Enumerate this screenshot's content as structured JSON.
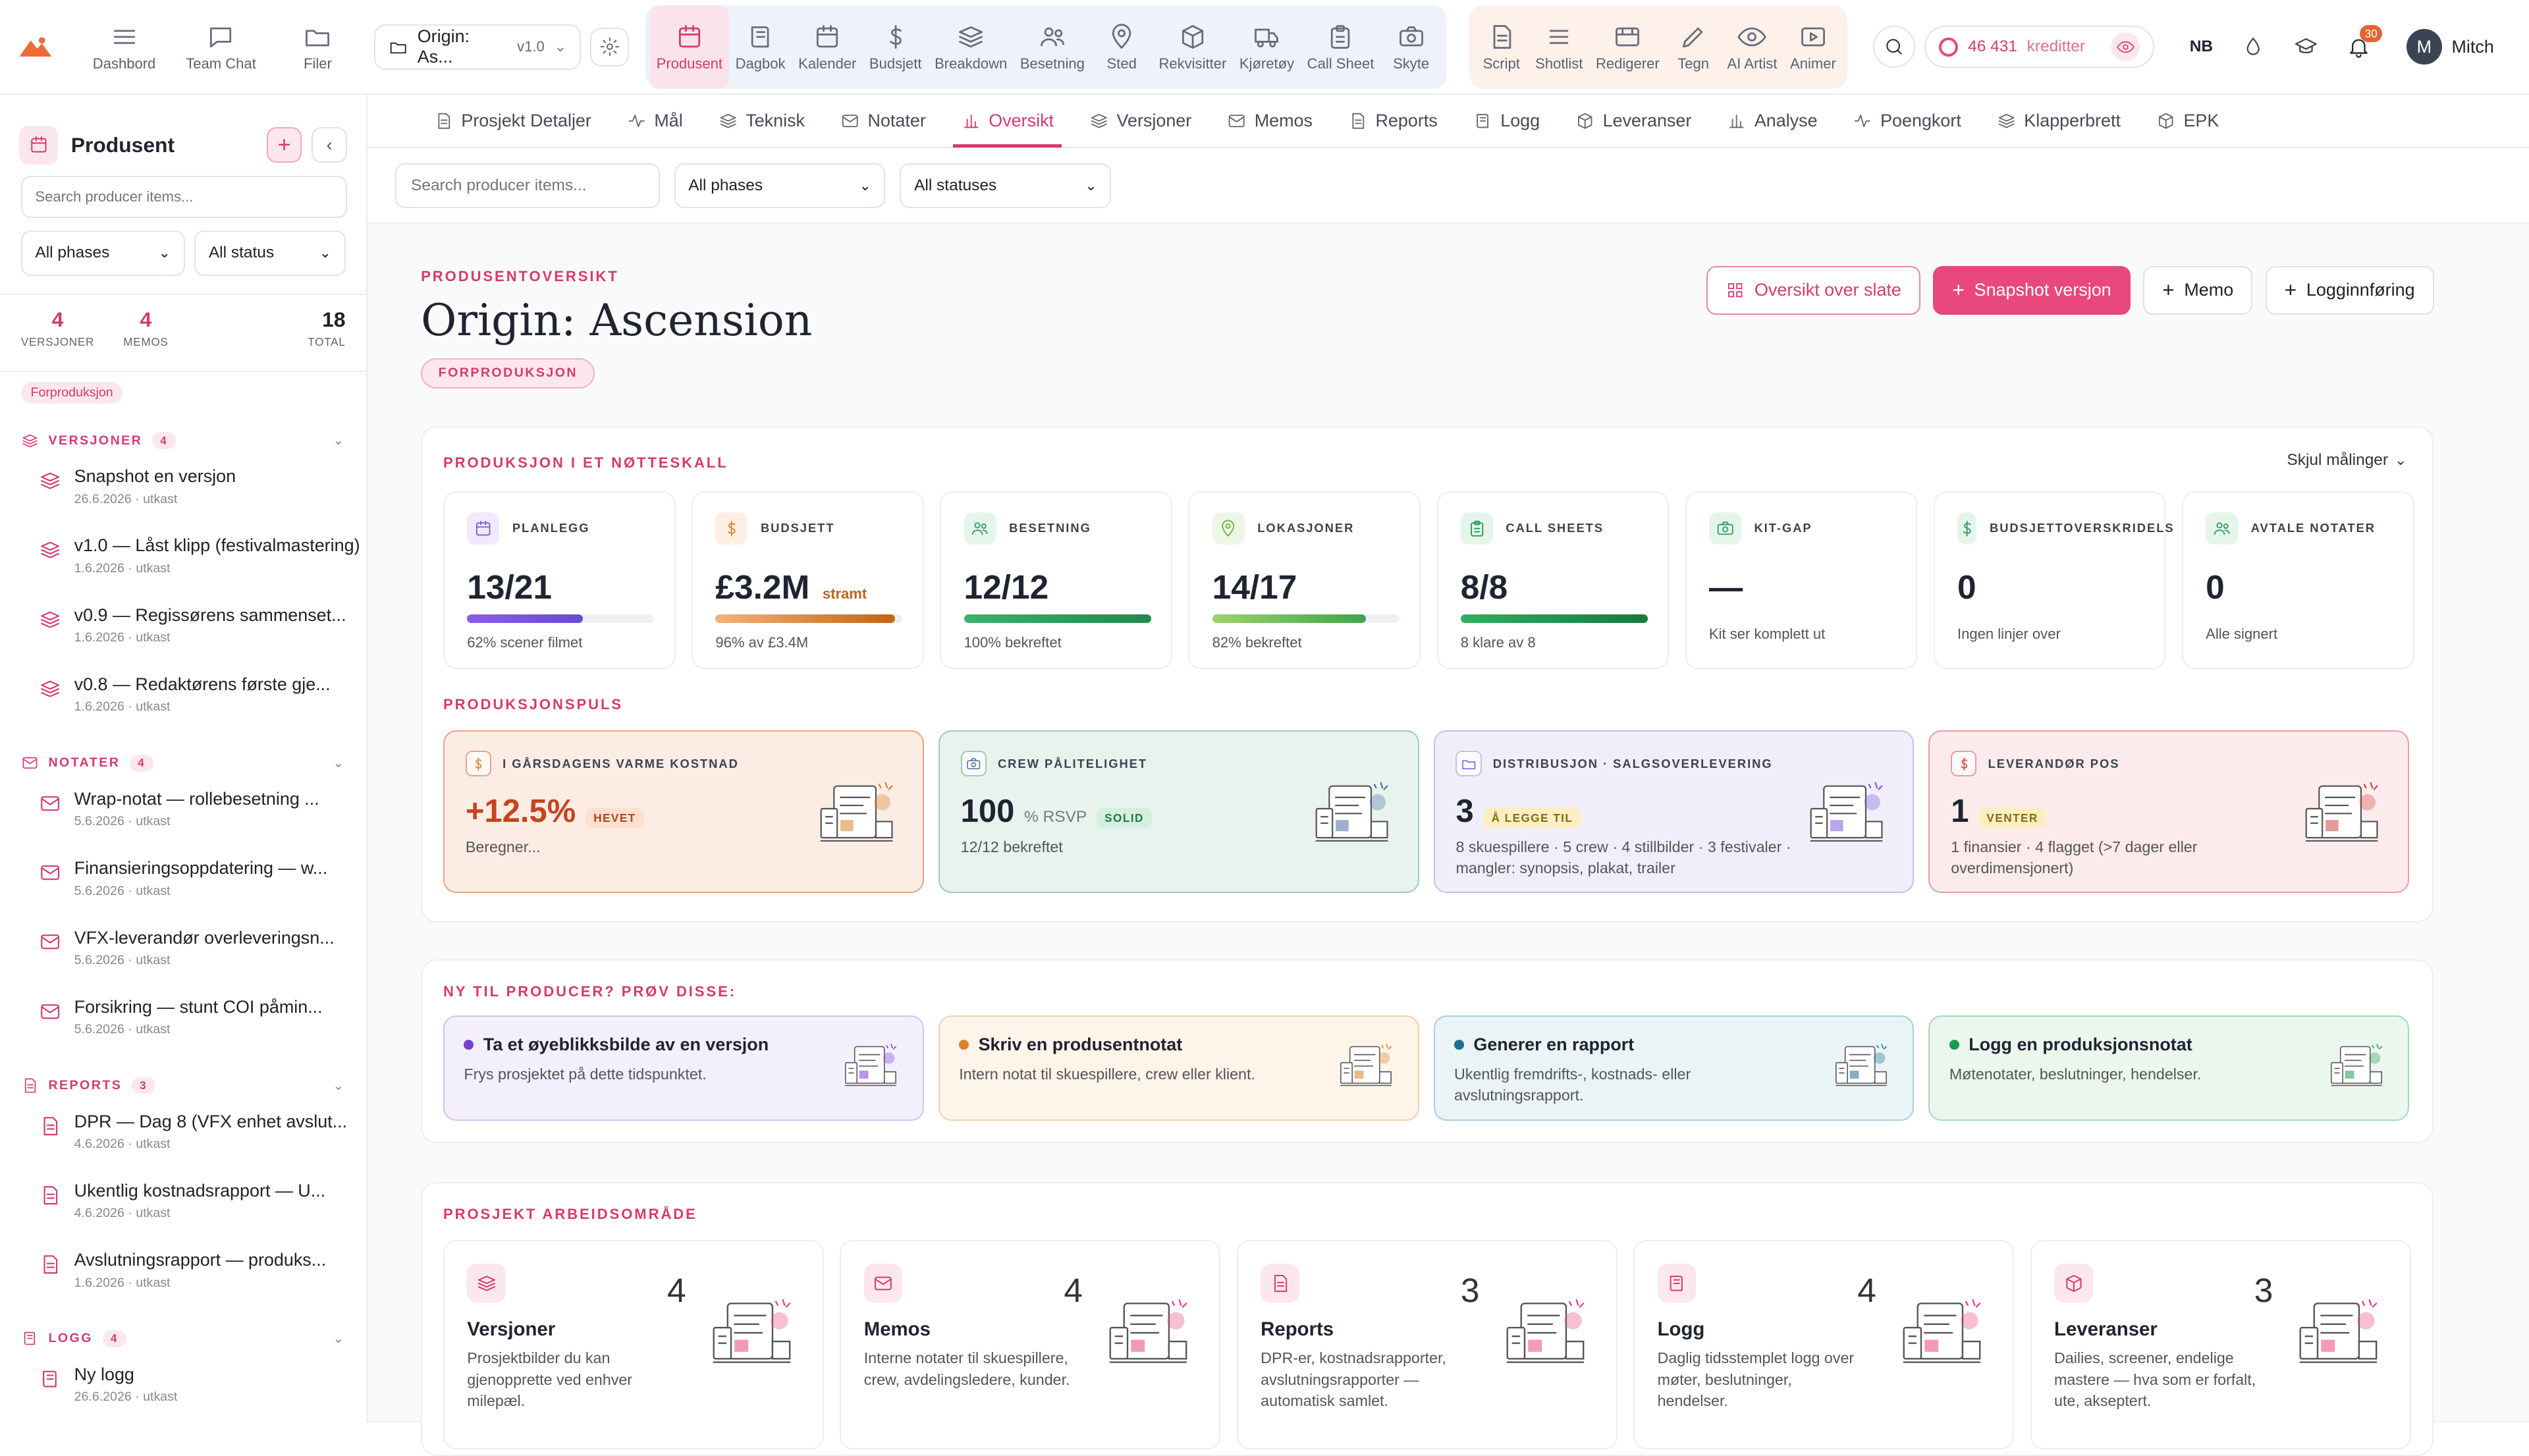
{
  "topbar": {
    "left_items": [
      {
        "label": "Dashbord",
        "icon": "menu-icon"
      },
      {
        "label": "Team Chat",
        "icon": "chat-icon"
      },
      {
        "label": "Filer",
        "icon": "folder-icon"
      }
    ],
    "project": {
      "name": "Origin: As...",
      "version": "v1.0"
    },
    "group_blue": [
      {
        "label": "Produsent",
        "icon": "calendar-icon",
        "active": true
      },
      {
        "label": "Dagbok",
        "icon": "book-icon"
      },
      {
        "label": "Kalender",
        "icon": "calendar-icon"
      },
      {
        "label": "Budsjett",
        "icon": "dollar-icon"
      },
      {
        "label": "Breakdown",
        "icon": "layers-icon"
      },
      {
        "label": "Besetning",
        "icon": "users-icon"
      },
      {
        "label": "Sted",
        "icon": "pin-icon"
      },
      {
        "label": "Rekvisitter",
        "icon": "box-icon"
      },
      {
        "label": "Kjøretøy",
        "icon": "truck-icon"
      },
      {
        "label": "Call Sheet",
        "icon": "clipboard-icon"
      },
      {
        "label": "Skyte",
        "icon": "camera-icon"
      }
    ],
    "group_peach": [
      {
        "label": "Script",
        "icon": "file-icon"
      },
      {
        "label": "Shotlist",
        "icon": "list-icon"
      },
      {
        "label": "Redigerer",
        "icon": "film-icon"
      },
      {
        "label": "Tegn",
        "icon": "pen-icon"
      },
      {
        "label": "AI Artist",
        "icon": "eye-icon"
      },
      {
        "label": "Animer",
        "icon": "play-icon"
      }
    ],
    "credits": {
      "value": "46 431",
      "label": "kreditter"
    },
    "lang": "NB",
    "notif_count": "30",
    "user": {
      "initial": "M",
      "name": "Mitch"
    }
  },
  "sidebar": {
    "title": "Produsent",
    "search_placeholder": "Search producer items...",
    "phase_filter": "All phases",
    "status_filter": "All status",
    "stats": {
      "versions": {
        "n": "4",
        "label": "VERSJONER"
      },
      "memos": {
        "n": "4",
        "label": "MEMOS"
      },
      "total": {
        "n": "18",
        "label": "TOTAL"
      }
    },
    "phase": "Forproduksjon",
    "sections": [
      {
        "title": "VERSJONER",
        "count": "4",
        "items": [
          {
            "title": "Snapshot en versjon",
            "meta": "26.6.2026 · utkast"
          },
          {
            "title": "v1.0 — Låst klipp (festivalmastering)",
            "meta": "1.6.2026 · utkast"
          },
          {
            "title": "v0.9 — Regissørens sammenset...",
            "meta": "1.6.2026 · utkast"
          },
          {
            "title": "v0.8 — Redaktørens første gje...",
            "meta": "1.6.2026 · utkast"
          }
        ]
      },
      {
        "title": "NOTATER",
        "count": "4",
        "items": [
          {
            "title": "Wrap-notat — rollebesetning ...",
            "meta": "5.6.2026 · utkast"
          },
          {
            "title": "Finansieringsoppdatering — w...",
            "meta": "5.6.2026 · utkast"
          },
          {
            "title": "VFX-leverandør overleveringsn...",
            "meta": "5.6.2026 · utkast"
          },
          {
            "title": "Forsikring — stunt COI påmin...",
            "meta": "5.6.2026 · utkast"
          }
        ]
      },
      {
        "title": "REPORTS",
        "count": "3",
        "items": [
          {
            "title": "DPR — Dag 8 (VFX enhet avslut...",
            "meta": "4.6.2026 · utkast"
          },
          {
            "title": "Ukentlig kostnadsrapport — U...",
            "meta": "4.6.2026 · utkast"
          },
          {
            "title": "Avslutningsrapport — produks...",
            "meta": "1.6.2026 · utkast"
          }
        ]
      },
      {
        "title": "LOGG",
        "count": "4",
        "items": [
          {
            "title": "Ny logg",
            "meta": "26.6.2026 · utkast"
          }
        ]
      }
    ]
  },
  "tabs": [
    {
      "label": "Prosjekt Detaljer",
      "icon": "file-icon"
    },
    {
      "label": "Mål",
      "icon": "pulse-icon"
    },
    {
      "label": "Teknisk",
      "icon": "layers-icon"
    },
    {
      "label": "Notater",
      "icon": "mail-icon"
    },
    {
      "label": "Oversikt",
      "icon": "bar-chart-icon",
      "active": true
    },
    {
      "label": "Versjoner",
      "icon": "layers-icon"
    },
    {
      "label": "Memos",
      "icon": "mail-icon"
    },
    {
      "label": "Reports",
      "icon": "file-icon"
    },
    {
      "label": "Logg",
      "icon": "book-icon"
    },
    {
      "label": "Leveranser",
      "icon": "box-icon"
    },
    {
      "label": "Analyse",
      "icon": "bar-chart-icon"
    },
    {
      "label": "Poengkort",
      "icon": "pulse-icon"
    },
    {
      "label": "Klapperbrett",
      "icon": "layers-icon"
    },
    {
      "label": "EPK",
      "icon": "box-icon"
    }
  ],
  "filters": {
    "search_placeholder": "Search producer items...",
    "phase": "All phases",
    "status": "All statuses"
  },
  "header": {
    "overline": "PRODUSENTOVERSIKT",
    "title": "Origin: Ascension",
    "phase": "FORPRODUKSJON",
    "actions": {
      "slate": "Oversikt over slate",
      "snapshot": "Snapshot versjon",
      "memo": "Memo",
      "log": "Logginnføring"
    }
  },
  "nutshell": {
    "title": "PRODUKSJON I ET NØTTESKALL",
    "hide": "Skjul målinger",
    "metrics": [
      {
        "label": "PLANLEGG",
        "value": "13/21",
        "tag": "",
        "sub": "62% scener filmet",
        "progress": 0.62,
        "icon": "calendar-icon",
        "color": "#7b5cd6",
        "bg": "#efeafc"
      },
      {
        "label": "BUDSJETT",
        "value": "£3.2M",
        "tag": "stramt",
        "sub": "96% av £3.4M",
        "progress": 0.96,
        "icon": "dollar-icon",
        "color": "#d9822b",
        "bg": "#fdf0e3"
      },
      {
        "label": "BESETNING",
        "value": "12/12",
        "tag": "",
        "sub": "100% bekreftet",
        "progress": 1.0,
        "icon": "users-icon",
        "color": "#2f9e5b",
        "bg": "#e6f5ec"
      },
      {
        "label": "LOKASJONER",
        "value": "14/17",
        "tag": "",
        "sub": "82% bekreftet",
        "progress": 0.82,
        "icon": "pin-icon",
        "color": "#6cb33f",
        "bg": "#eef7e6"
      },
      {
        "label": "CALL SHEETS",
        "value": "8/8",
        "tag": "",
        "sub": "8 klare av 8",
        "progress": 1.0,
        "icon": "clipboard-icon",
        "color": "#1f9a52",
        "bg": "#e6f5ec"
      },
      {
        "label": "KIT-GAP",
        "value": "—",
        "tag": "",
        "sub": "Kit ser komplett ut",
        "progress": null,
        "icon": "camera-icon",
        "color": "#2f9e5b",
        "bg": "#e6f5ec"
      },
      {
        "label": "BUDSJETTOVERSKRIDELS",
        "value": "0",
        "tag": "",
        "sub": "Ingen linjer over",
        "progress": null,
        "icon": "dollar-icon",
        "color": "#2f9e5b",
        "bg": "#e6f5ec"
      },
      {
        "label": "AVTALE NOTATER",
        "value": "0",
        "tag": "",
        "sub": "Alle signert",
        "progress": null,
        "icon": "users-icon",
        "color": "#2f9e5b",
        "bg": "#e6f5ec"
      }
    ],
    "pulse_title": "PRODUKSJONSPULS",
    "pulses": [
      {
        "label": "I GÅRSDAGENS VARME KOSTNAD",
        "value": "+12.5%",
        "unit": "",
        "chip": "HEVET",
        "sub": "Beregner...",
        "icon": "dollar-icon",
        "bg": "#fbece4",
        "border": "#e9a584",
        "valcolor": "#c4451f",
        "chipbg": "#fde0cf",
        "chipcolor": "#b4451d",
        "iconcolor": "#d9822b"
      },
      {
        "label": "CREW PÅLITELIGHET",
        "value": "100",
        "unit": "% RSVP",
        "chip": "SOLID",
        "sub": "12/12 bekreftet",
        "icon": "camera-icon",
        "bg": "#e8f3ee",
        "border": "#9ccdb2",
        "valcolor": "#1f2430",
        "chipbg": "#d5efdf",
        "chipcolor": "#1f7a45",
        "iconcolor": "#4a6fa5"
      },
      {
        "label": "DISTRIBUSJON · SALGSOVERLEVERING",
        "value": "3",
        "unit": "",
        "chip": "Å LEGGE TIL",
        "sub": "8 skuespillere · 5 crew · 4 stillbilder · 3 festivaler · mangler: synopsis, plakat, trailer",
        "icon": "folder-icon",
        "bg": "#f1eefb",
        "border": "#c9bdf0",
        "valcolor": "#1f2430",
        "chipbg": "#fbeec2",
        "chipcolor": "#8a6a0d",
        "iconcolor": "#7b5cd6"
      },
      {
        "label": "LEVERANDØR POS",
        "value": "1",
        "unit": "",
        "chip": "VENTER",
        "sub": "1 finansier · 4 flagget (>7 dager eller overdimensjonert)",
        "icon": "dollar-icon",
        "bg": "#fcebec",
        "border": "#ec9ba4",
        "valcolor": "#1f2430",
        "chipbg": "#fbeec2",
        "chipcolor": "#8a6a0d",
        "iconcolor": "#d64545"
      }
    ]
  },
  "try": {
    "title": "NY TIL PRODUCER? PRØV DISSE:",
    "items": [
      {
        "title": "Ta et øyeblikksbilde av en versjon",
        "desc": "Frys prosjektet på dette tidspunktet.",
        "dot": "#7b3fd6",
        "bg": "#f3effc",
        "border": "#cfc3f2"
      },
      {
        "title": "Skriv en produsentnotat",
        "desc": "Intern notat til skuespillere, crew eller klient.",
        "dot": "#d9822b",
        "bg": "#fdf4ea",
        "border": "#efd2ad"
      },
      {
        "title": "Generer en rapport",
        "desc": "Ukentlig fremdrifts-, kostnads- eller avslutningsrapport.",
        "dot": "#1d6f8f",
        "bg": "#eaf3f6",
        "border": "#a8cfdb"
      },
      {
        "title": "Logg en produksjonsnotat",
        "desc": "Møtenotater, beslutninger, hendelser.",
        "dot": "#1f9a52",
        "bg": "#ebf6ef",
        "border": "#a8d8b9"
      }
    ]
  },
  "workspace": {
    "title": "PROSJEKT ARBEIDSOMRÅDE",
    "items": [
      {
        "name": "Versjoner",
        "count": "4",
        "desc": "Prosjektbilder du kan gjenopprette ved enhver milepæl.",
        "icon": "layers-icon"
      },
      {
        "name": "Memos",
        "count": "4",
        "desc": "Interne notater til skuespillere, crew, avdelingsledere, kunder.",
        "icon": "mail-icon"
      },
      {
        "name": "Reports",
        "count": "3",
        "desc": "DPR-er, kostnadsrapporter, avslutningsrapporter — automatisk samlet.",
        "icon": "file-icon"
      },
      {
        "name": "Logg",
        "count": "4",
        "desc": "Daglig tidsstemplet logg over møter, beslutninger, hendelser.",
        "icon": "book-icon"
      },
      {
        "name": "Leveranser",
        "count": "3",
        "desc": "Dailies, screener, endelige mastere — hva som er forfalt, ute, akseptert.",
        "icon": "box-icon"
      }
    ]
  }
}
